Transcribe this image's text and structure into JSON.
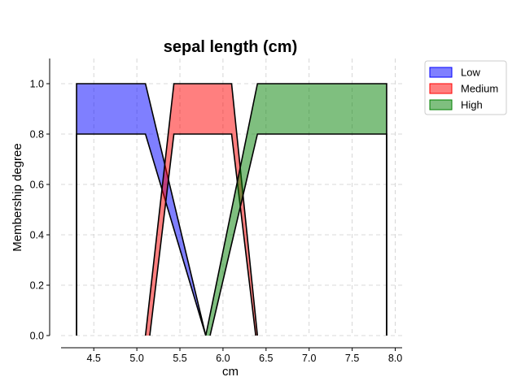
{
  "chart_data": {
    "type": "area",
    "title": "sepal length (cm)",
    "xlabel": "cm",
    "ylabel": "Membership degree",
    "xlim": [
      4.12,
      8.08
    ],
    "ylim": [
      0.0,
      1.1
    ],
    "xticks": [
      4.5,
      5.0,
      5.5,
      6.0,
      6.5,
      7.0,
      7.5,
      8.0
    ],
    "xtick_labels": [
      "4.5",
      "5.0",
      "5.5",
      "6.0",
      "6.5",
      "7.0",
      "7.5",
      "8.0"
    ],
    "yticks": [
      0.0,
      0.2,
      0.4,
      0.6,
      0.8,
      1.0
    ],
    "ytick_labels": [
      "0.0",
      "0.2",
      "0.4",
      "0.6",
      "0.8",
      "1.0"
    ],
    "grid": true,
    "legend_position": "upper right, outside plot",
    "series": [
      {
        "name": "Low",
        "color": "#0000ff",
        "alpha": 0.5,
        "upper": {
          "x": [
            4.3,
            4.3,
            5.1,
            5.8
          ],
          "y": [
            0.0,
            1.0,
            1.0,
            0.0
          ]
        },
        "lower": {
          "x": [
            4.3,
            4.3,
            5.1,
            5.8
          ],
          "y": [
            0.0,
            0.8,
            0.8,
            0.0
          ]
        }
      },
      {
        "name": "Medium",
        "color": "#ff0000",
        "alpha": 0.5,
        "upper": {
          "x": [
            5.1,
            5.43,
            6.1,
            6.4
          ],
          "y": [
            0.0,
            1.0,
            1.0,
            0.0
          ]
        },
        "lower": {
          "x": [
            5.15,
            5.43,
            6.1,
            6.38
          ],
          "y": [
            0.0,
            0.8,
            0.8,
            0.0
          ]
        }
      },
      {
        "name": "High",
        "color": "#008000",
        "alpha": 0.5,
        "upper": {
          "x": [
            5.8,
            6.4,
            7.9,
            7.9
          ],
          "y": [
            0.0,
            1.0,
            1.0,
            0.0
          ]
        },
        "lower": {
          "x": [
            5.85,
            6.4,
            7.9,
            7.9
          ],
          "y": [
            0.0,
            0.8,
            0.8,
            0.0
          ]
        }
      }
    ]
  }
}
